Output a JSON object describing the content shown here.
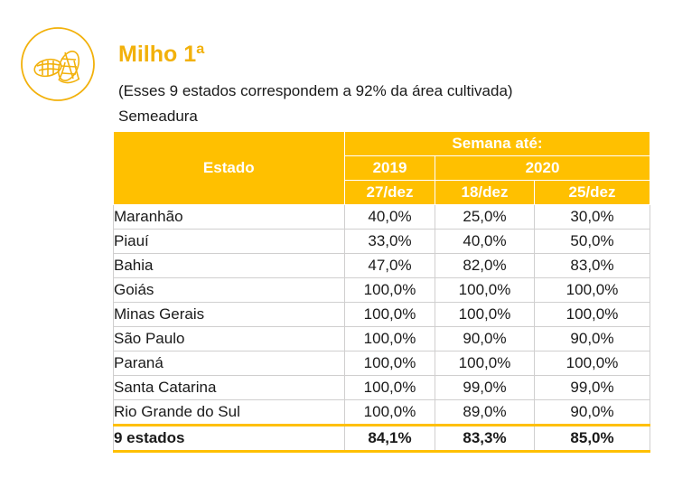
{
  "title": "Milho 1ª",
  "subtitle": "(Esses 9 estados correspondem a 92% da área cultivada)",
  "section": "Semeadura",
  "table": {
    "header": {
      "estado": "Estado",
      "semana": "Semana até:",
      "y2019": "2019",
      "y2020": "2020",
      "d1": "27/dez",
      "d2": "18/dez",
      "d3": "25/dez"
    },
    "rows": [
      [
        "Maranhão",
        "40,0%",
        "25,0%",
        "30,0%"
      ],
      [
        "Piauí",
        "33,0%",
        "40,0%",
        "50,0%"
      ],
      [
        "Bahia",
        "47,0%",
        "82,0%",
        "83,0%"
      ],
      [
        "Goiás",
        "100,0%",
        "100,0%",
        "100,0%"
      ],
      [
        "Minas Gerais",
        "100,0%",
        "100,0%",
        "100,0%"
      ],
      [
        "São Paulo",
        "100,0%",
        "90,0%",
        "90,0%"
      ],
      [
        "Paraná",
        "100,0%",
        "100,0%",
        "100,0%"
      ],
      [
        "Santa Catarina",
        "100,0%",
        "99,0%",
        "99,0%"
      ],
      [
        "Rio Grande do Sul",
        "100,0%",
        "89,0%",
        "90,0%"
      ]
    ],
    "total": [
      "9 estados",
      "84,1%",
      "83,3%",
      "85,0%"
    ]
  },
  "colors": {
    "accent": "#ffc000",
    "title": "#f2b10b"
  },
  "icons": {
    "crop": "corn-icon"
  }
}
